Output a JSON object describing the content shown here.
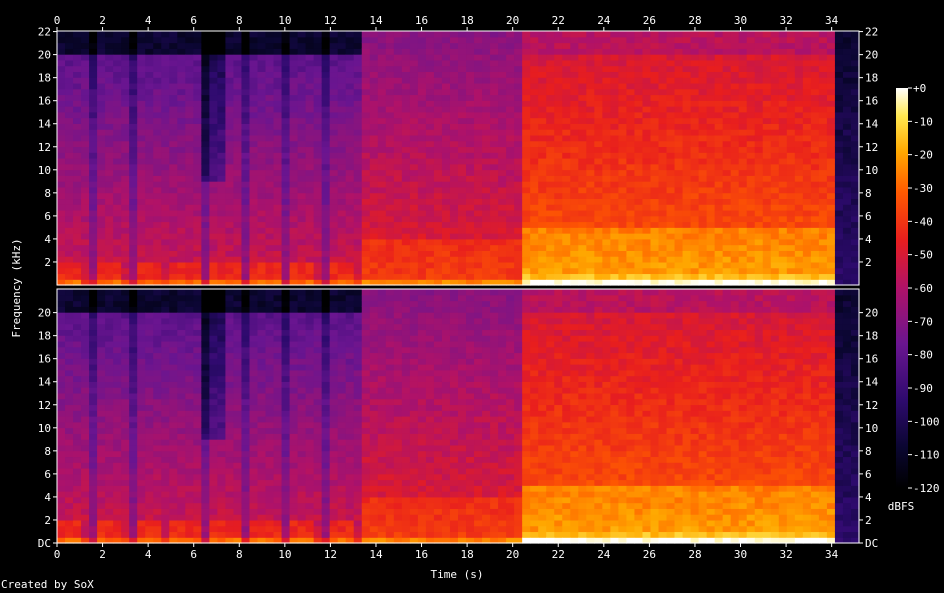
{
  "footer": {
    "credit": "Created by SoX"
  },
  "chart_data": {
    "type": "heatmap",
    "xlabel": "Time (s)",
    "ylabel": "Frequency (kHz)",
    "colorbar_label": "dBFS",
    "xlim": [
      0,
      35.2
    ],
    "ylim": [
      0,
      22.05
    ],
    "x_ticks": [
      "0",
      "2",
      "4",
      "6",
      "8",
      "10",
      "12",
      "14",
      "16",
      "18",
      "20",
      "22",
      "24",
      "26",
      "28",
      "30",
      "32",
      "34"
    ],
    "y_ticks_upper": [
      "2",
      "4",
      "6",
      "8",
      "10",
      "12",
      "14",
      "16",
      "18",
      "20",
      "22"
    ],
    "y_ticks_lower": [
      "DC",
      "2",
      "4",
      "6",
      "8",
      "10",
      "12",
      "14",
      "16",
      "18",
      "20"
    ],
    "colorbar_ticks": [
      "+0",
      "-10",
      "-20",
      "-30",
      "-40",
      "-50",
      "-60",
      "-70",
      "-80",
      "-90",
      "-100",
      "-110",
      "-120"
    ],
    "colorbar_range": [
      -120,
      0
    ],
    "channels": 2,
    "segments": [
      {
        "start": 0,
        "end": 13.5,
        "character": "rhythmic bursts, strong bass, energy up to 20 kHz"
      },
      {
        "start": 13.5,
        "end": 20.3,
        "character": "denser mid band, full band to 22 kHz"
      },
      {
        "start": 20.3,
        "end": 34.0,
        "character": "loud dense full band, bright mids"
      },
      {
        "start": 34.0,
        "end": 35.2,
        "character": "fade to silence"
      }
    ]
  }
}
